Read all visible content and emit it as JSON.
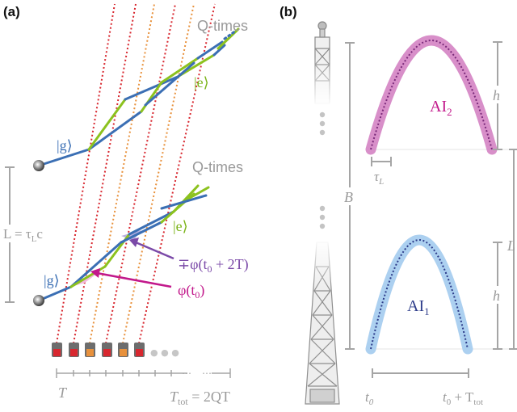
{
  "panel_a": {
    "label": "(a)",
    "q_times_top": "Q-times",
    "q_times_bottom": "Q-times",
    "ket_e_top": "|e⟩",
    "ket_g_top": "|g⟩",
    "ket_e_bottom": "|e⟩",
    "ket_g_bottom": "|g⟩",
    "L_label": "L = τ",
    "L_sub": "L",
    "L_c": "c",
    "phase_purple": "∓φ(t",
    "phase_purple_sub": "0",
    "phase_purple_tail": " + 2T)",
    "phase_magenta": "φ(t",
    "phase_magenta_sub": "0",
    "phase_magenta_tail": ")",
    "dots_lasers": "● ● ●",
    "axis_T": "T",
    "axis_ttot": "T",
    "axis_ttot_sub": "tot",
    "axis_ttot_tail": " = 2QT",
    "axis_dots_1": "⋯",
    "axis_dots_2": "⋯"
  },
  "panel_b": {
    "label": "(b)",
    "AI2": "AI",
    "AI2_sub": "2",
    "AI1": "AI",
    "AI1_sub": "1",
    "tau_L": "τ",
    "tau_L_sub": "L",
    "B": "B",
    "L": "L",
    "h_top": "h",
    "h_bottom": "h",
    "t0": "t",
    "t0_sub": "0",
    "t0_plus": "t",
    "t0_plus_sub": "0",
    "t0_plus_tail": " + T",
    "t0_plus_sub2": "tot"
  },
  "colors": {
    "blue": "#3b6fb4",
    "green": "#8cc21e",
    "red_dotted": "#d8272f",
    "orange_dotted": "#e8913c",
    "magenta": "#d17bbf",
    "light_blue": "#a8cdef",
    "grey": "#a5a5a5"
  }
}
